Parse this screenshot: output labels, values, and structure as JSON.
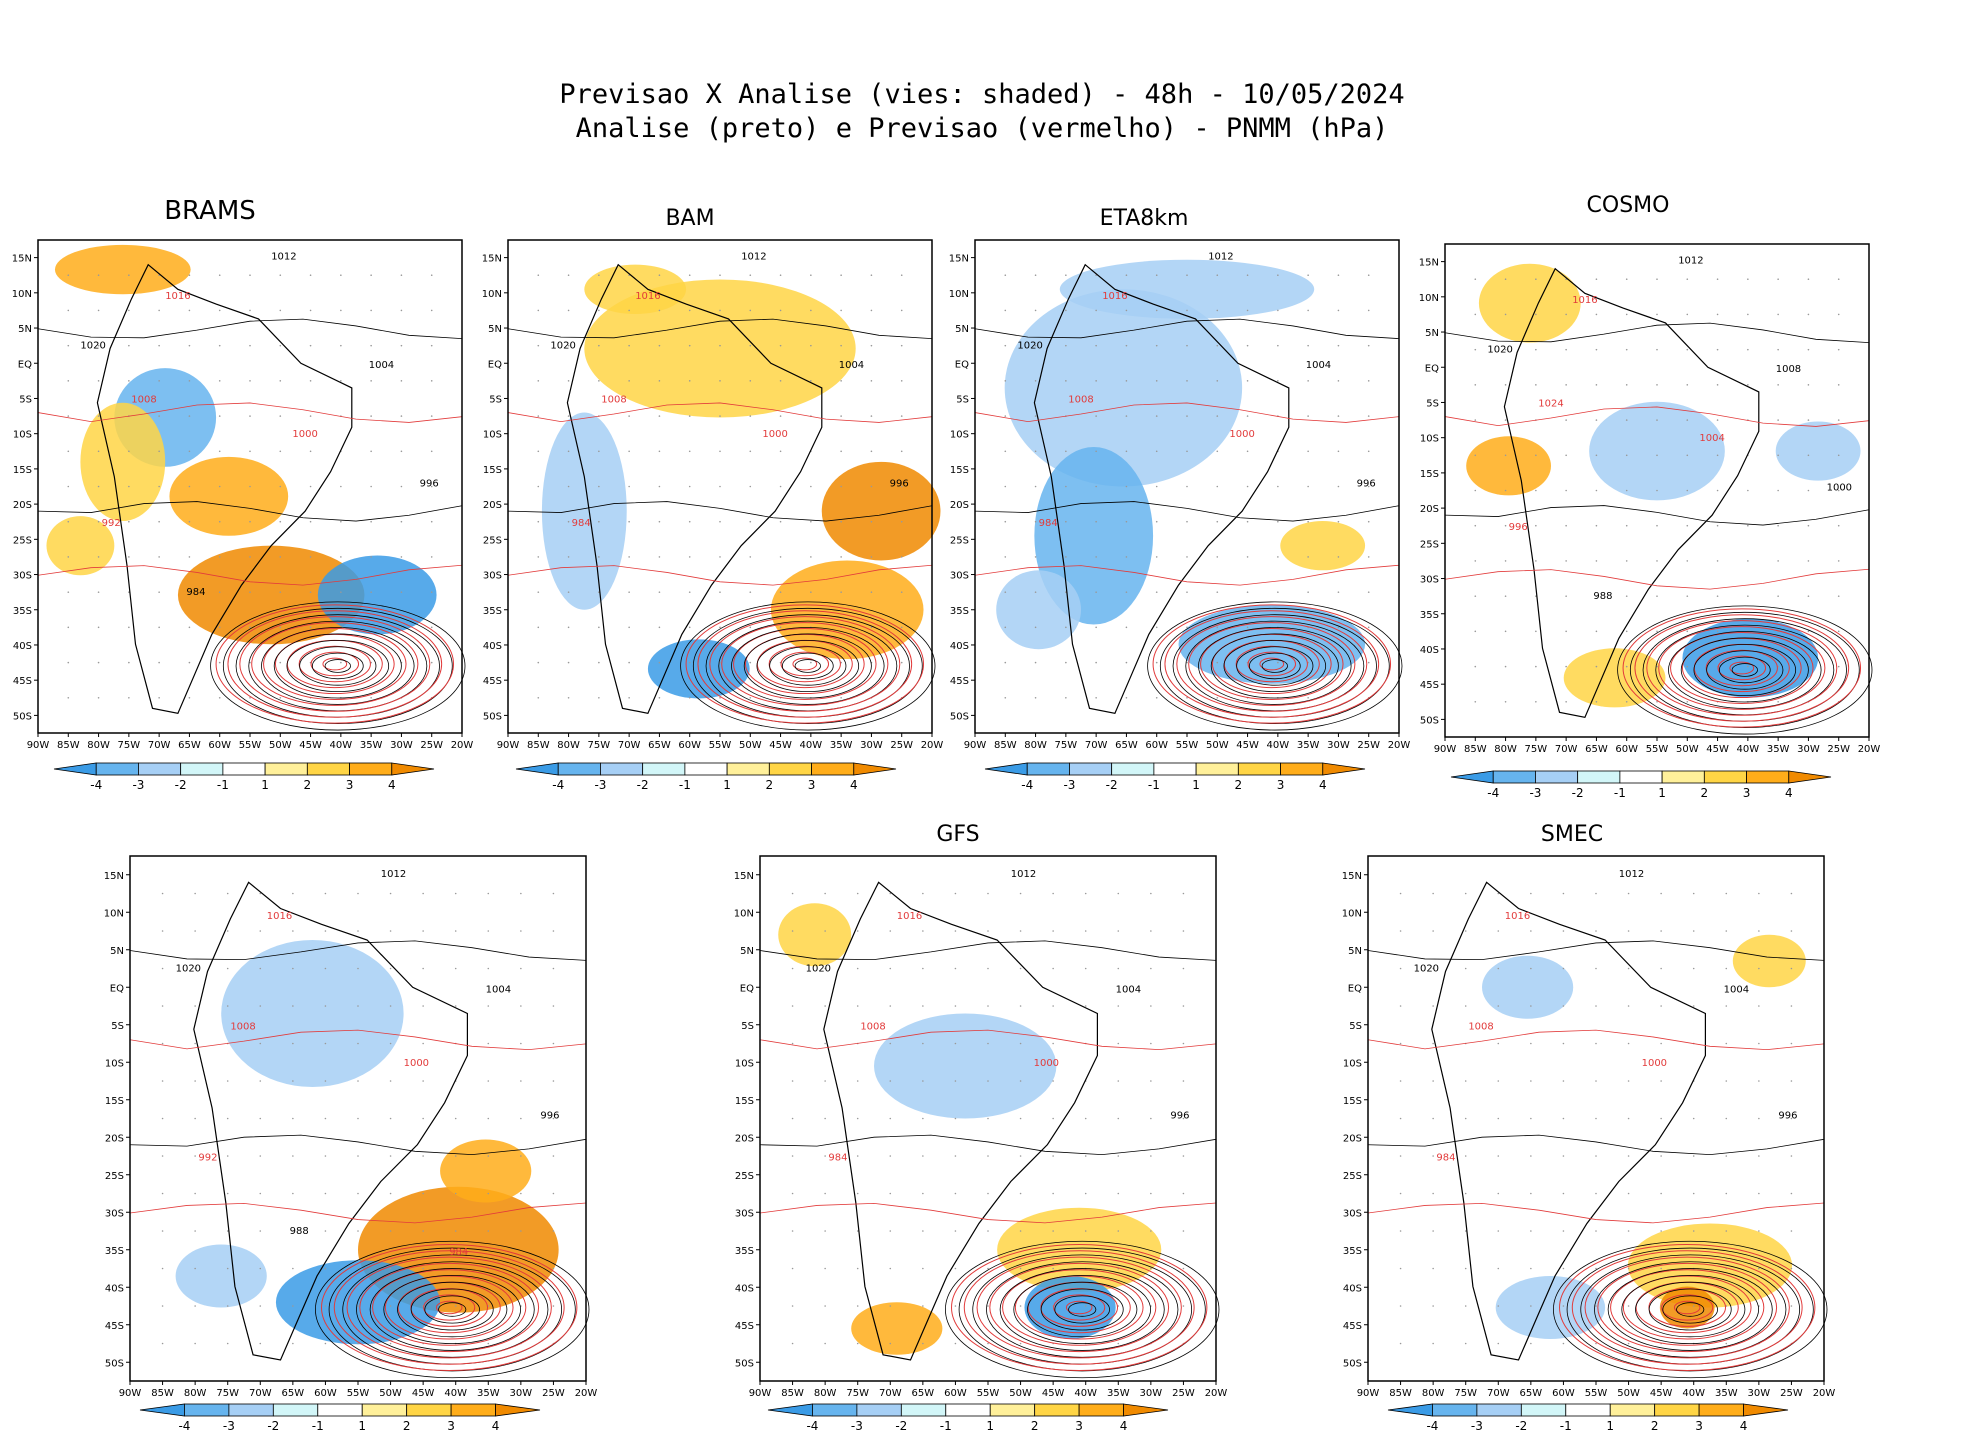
{
  "header": {
    "line1": "Previsao X Analise (vies: shaded) - 48h - 10/05/2024",
    "line2": "Analise (preto) e Previsao (vermelho) - PNMM (hPa)"
  },
  "axes": {
    "lat_labels": [
      "15N",
      "10N",
      "5N",
      "EQ",
      "5S",
      "10S",
      "15S",
      "20S",
      "25S",
      "30S",
      "35S",
      "40S",
      "45S",
      "50S"
    ],
    "lon_labels": [
      "90W",
      "85W",
      "80W",
      "75W",
      "70W",
      "65W",
      "60W",
      "55W",
      "50W",
      "45W",
      "40W",
      "35W",
      "30W",
      "25W",
      "20W"
    ]
  },
  "colorbar": {
    "labels": [
      "-4",
      "-3",
      "-2",
      "-1",
      "1",
      "2",
      "3",
      "4"
    ],
    "colors": [
      "#3a9be6",
      "#66b4ee",
      "#a6cff5",
      "#d2f6f8",
      "#ffffff",
      "#fff09a",
      "#ffd545",
      "#ffad1a",
      "#f08a00"
    ]
  },
  "contour_colors": {
    "analysis": "#000000",
    "forecast": "#e23b3b"
  },
  "panels": [
    {
      "id": "brams",
      "title": "BRAMS",
      "labels": [
        "1012",
        "1016",
        "1020",
        "1008",
        "1004",
        "1000",
        "996",
        "992",
        "984"
      ]
    },
    {
      "id": "bam",
      "title": "BAM",
      "labels": [
        "1012",
        "1016",
        "1020",
        "1008",
        "1004",
        "1000",
        "996",
        "984"
      ]
    },
    {
      "id": "eta8km",
      "title": "ETA8km",
      "labels": [
        "1012",
        "1016",
        "1020",
        "1008",
        "1004",
        "1000",
        "996",
        "984"
      ]
    },
    {
      "id": "cosmo",
      "title": "COSMO",
      "labels": [
        "1012",
        "1016",
        "1020",
        "1024",
        "1008",
        "1004",
        "1000",
        "996",
        "988"
      ]
    },
    {
      "id": "p5",
      "title": "",
      "labels": [
        "1012",
        "1016",
        "1020",
        "1008",
        "1004",
        "1000",
        "996",
        "992",
        "988",
        "984"
      ]
    },
    {
      "id": "gfs",
      "title": "GFS",
      "labels": [
        "1012",
        "1016",
        "1020",
        "1008",
        "1004",
        "1000",
        "996",
        "984"
      ]
    },
    {
      "id": "smec",
      "title": "SMEC",
      "labels": [
        "1012",
        "1016",
        "1020",
        "1008",
        "1004",
        "1000",
        "996",
        "984"
      ]
    }
  ]
}
